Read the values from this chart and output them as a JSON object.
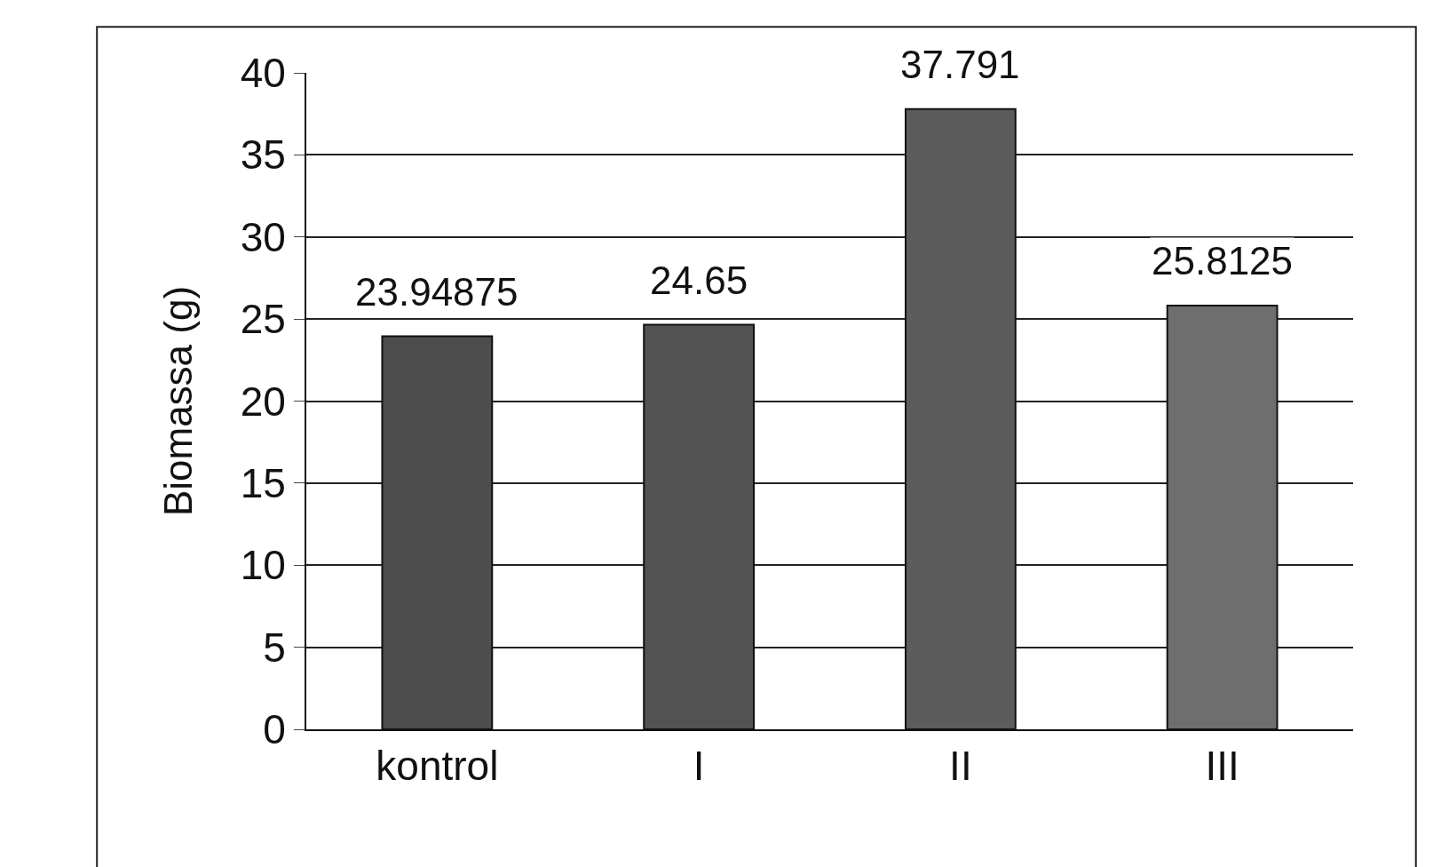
{
  "chart_data": {
    "type": "bar",
    "ylabel": "Biomassa (g)",
    "categories": [
      "kontrol",
      "I",
      "II",
      "III"
    ],
    "values": [
      23.94875,
      24.65,
      37.791,
      25.8125
    ],
    "colors": [
      "#4d4d4d",
      "#525252",
      "#5c5c5c",
      "#6e6e6e"
    ],
    "ylim": [
      0,
      40
    ],
    "yticks": [
      0,
      5,
      10,
      15,
      20,
      25,
      30,
      35,
      40
    ],
    "grid": "y",
    "data_labels": true
  }
}
